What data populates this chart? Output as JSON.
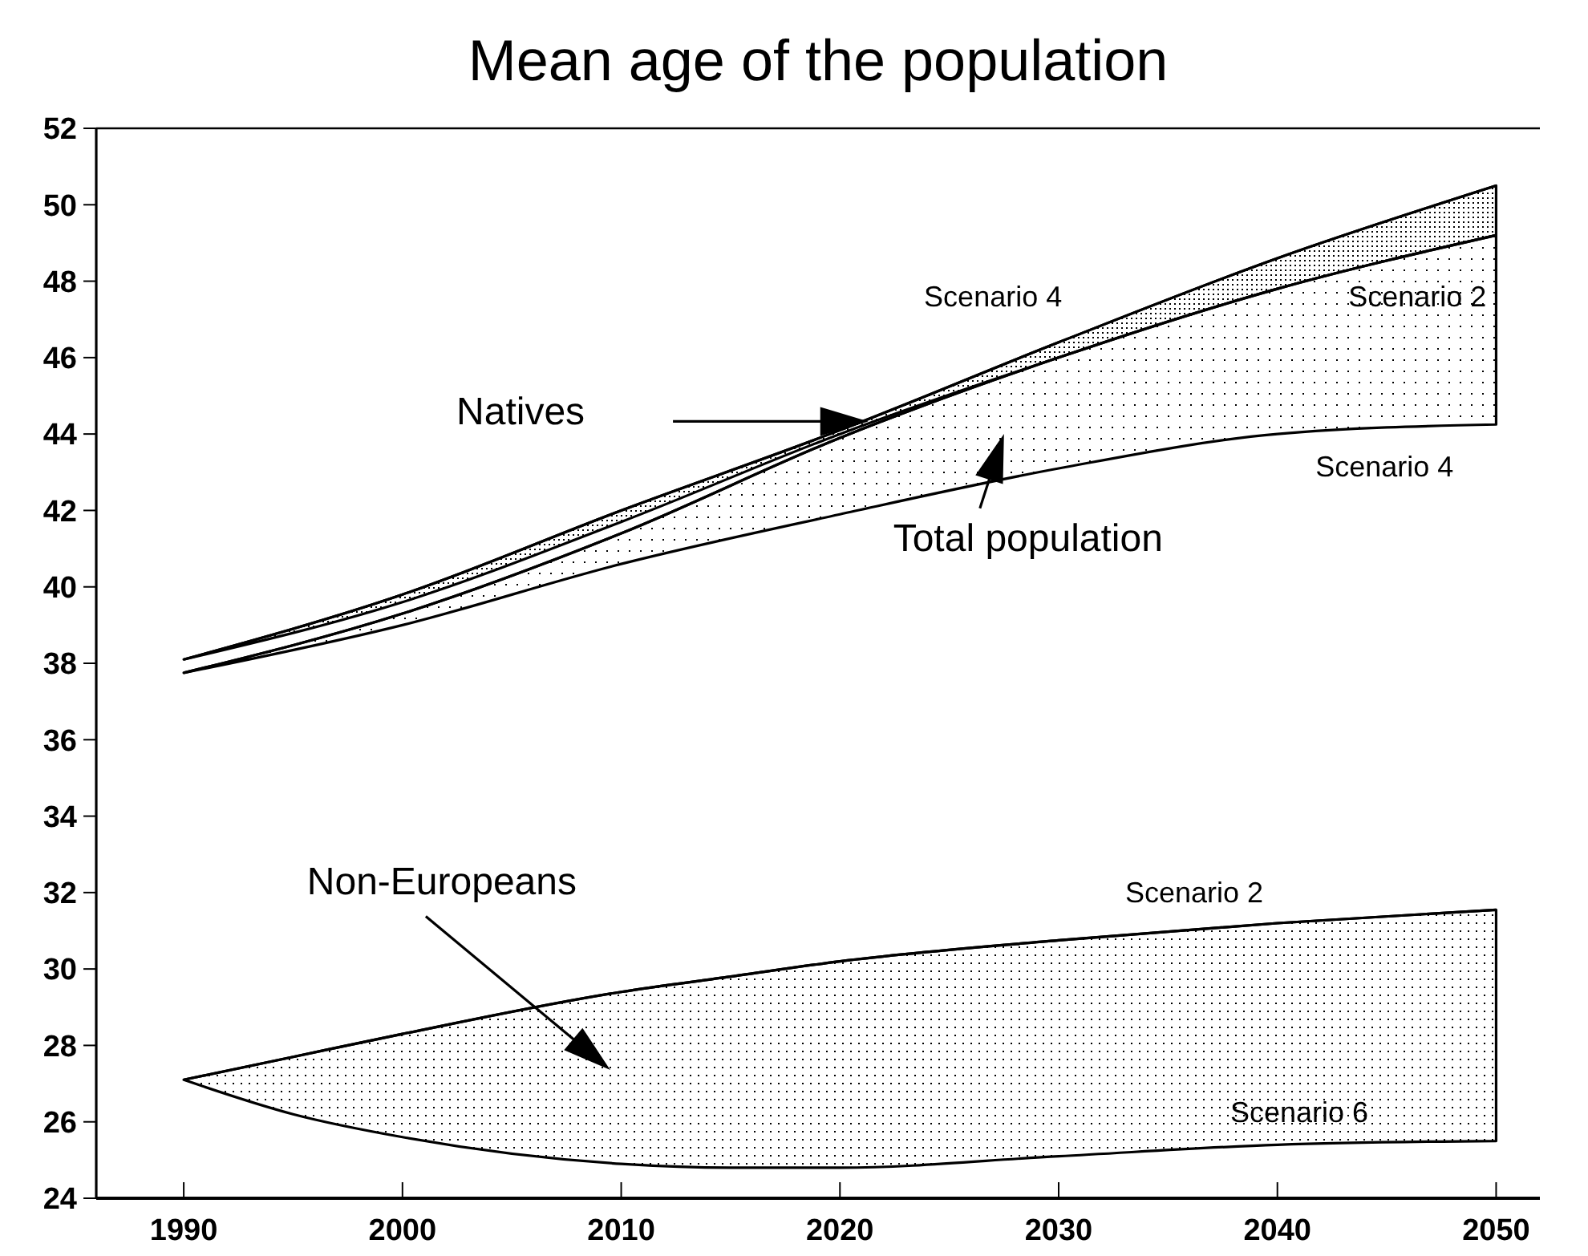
{
  "chart_data": {
    "type": "line",
    "title": "Mean age of the population",
    "x": [
      1990,
      2000,
      2010,
      2020,
      2030,
      2040,
      2050
    ],
    "xlim": [
      1986,
      2052
    ],
    "xticks": [
      1990,
      2000,
      2010,
      2020,
      2030,
      2040,
      2050
    ],
    "ylim": [
      24,
      52
    ],
    "yticks": [
      24,
      26,
      28,
      30,
      32,
      34,
      36,
      38,
      40,
      42,
      44,
      46,
      48,
      50,
      52
    ],
    "grid": false,
    "series": [
      {
        "name": "Natives",
        "color": "#000000",
        "values": [
          38.1,
          39.8,
          42.0,
          44.1,
          46.4,
          48.6,
          50.5
        ],
        "upper": [
          38.1,
          39.8,
          42.0,
          44.1,
          46.4,
          48.6,
          50.5
        ],
        "lower": [
          38.1,
          39.6,
          41.7,
          44.0,
          46.0,
          47.8,
          49.2
        ]
      },
      {
        "name": "Total population",
        "color": "#000000",
        "values": [
          37.75,
          39.3,
          41.4,
          43.9,
          46.0,
          47.8,
          49.2
        ],
        "upper": [
          37.75,
          39.3,
          41.4,
          43.9,
          46.0,
          47.8,
          49.2
        ],
        "lower": [
          37.75,
          39.0,
          40.6,
          41.9,
          43.1,
          44.0,
          44.25
        ]
      },
      {
        "name": "Non-Europeans",
        "color": "#000000",
        "x": [
          1990,
          1995,
          2000,
          2010,
          2015,
          2020,
          2030,
          2040,
          2050
        ],
        "values": [
          27.1,
          27.7,
          28.3,
          29.4,
          29.8,
          30.2,
          30.75,
          31.2,
          31.55
        ],
        "upper": [
          27.1,
          27.7,
          28.3,
          29.4,
          29.8,
          30.2,
          30.75,
          31.2,
          31.55
        ],
        "lower": [
          27.1,
          26.2,
          25.6,
          24.9,
          24.8,
          24.8,
          25.1,
          25.4,
          25.5
        ]
      }
    ],
    "annotations": [
      "Scenario 4",
      "Scenario 2",
      "Scenario 4",
      "Scenario 2",
      "Scenario 6"
    ]
  }
}
